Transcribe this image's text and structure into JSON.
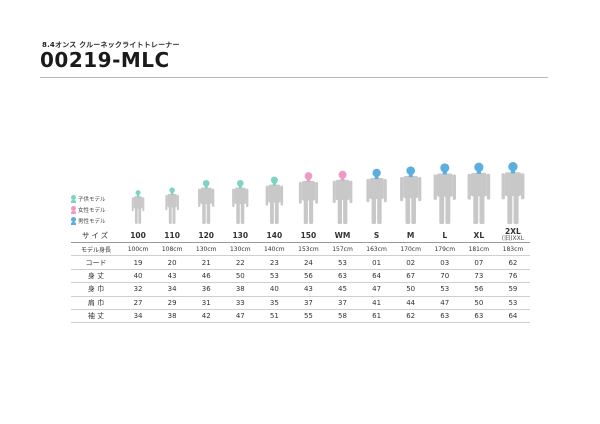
{
  "header": {
    "subtitle": "8.4オンス クルーネックライトトレーナー",
    "product_code": "00219-MLC"
  },
  "colors": {
    "kids": "#7fd3c4",
    "women": "#eb9bc4",
    "men": "#5aaee0",
    "garment": "#c8c8c8"
  },
  "legend": [
    {
      "label": "子供モデル",
      "group": "kids"
    },
    {
      "label": "女性モデル",
      "group": "women"
    },
    {
      "label": "男性モデル",
      "group": "men"
    }
  ],
  "figures": [
    {
      "group": "kids",
      "height_cm": 100
    },
    {
      "group": "kids",
      "height_cm": 108
    },
    {
      "group": "kids",
      "height_cm": 130
    },
    {
      "group": "kids",
      "height_cm": 130
    },
    {
      "group": "kids",
      "height_cm": 140
    },
    {
      "group": "women",
      "height_cm": 153
    },
    {
      "group": "women",
      "height_cm": 157
    },
    {
      "group": "men",
      "height_cm": 163
    },
    {
      "group": "men",
      "height_cm": 170
    },
    {
      "group": "men",
      "height_cm": 179
    },
    {
      "group": "men",
      "height_cm": 181
    },
    {
      "group": "men",
      "height_cm": 183
    }
  ],
  "table": {
    "size_label": "サイズ",
    "sizes": [
      {
        "label": "100",
        "group": "kids"
      },
      {
        "label": "110",
        "group": "kids"
      },
      {
        "label": "120",
        "group": "kids"
      },
      {
        "label": "130",
        "group": "kids"
      },
      {
        "label": "140",
        "group": "kids"
      },
      {
        "label": "150",
        "group": "kids"
      },
      {
        "label": "WM",
        "group": "women"
      },
      {
        "label": "S",
        "group": "kids"
      },
      {
        "label": "M",
        "group": "kids"
      },
      {
        "label": "L",
        "group": "kids"
      },
      {
        "label": "XL",
        "group": "kids"
      },
      {
        "label": "2XL",
        "sub": "(旧)XXL",
        "group": "men"
      }
    ],
    "rows": [
      {
        "label": "モデル身長",
        "kind": "height",
        "values": [
          "100cm",
          "108cm",
          "130cm",
          "130cm",
          "140cm",
          "153cm",
          "157cm",
          "163cm",
          "170cm",
          "179cm",
          "181cm",
          "183cm"
        ]
      },
      {
        "label": "コード",
        "kind": "code",
        "values": [
          "19",
          "20",
          "21",
          "22",
          "23",
          "24",
          "53",
          "01",
          "02",
          "03",
          "07",
          "62"
        ]
      },
      {
        "label": "身 丈",
        "kind": "measure",
        "values": [
          "40",
          "43",
          "46",
          "50",
          "53",
          "56",
          "63",
          "64",
          "67",
          "70",
          "73",
          "76"
        ]
      },
      {
        "label": "身 巾",
        "kind": "measure",
        "values": [
          "32",
          "34",
          "36",
          "38",
          "40",
          "43",
          "45",
          "47",
          "50",
          "53",
          "56",
          "59"
        ]
      },
      {
        "label": "肩 巾",
        "kind": "measure",
        "values": [
          "27",
          "29",
          "31",
          "33",
          "35",
          "37",
          "37",
          "41",
          "44",
          "47",
          "50",
          "53"
        ]
      },
      {
        "label": "袖 丈",
        "kind": "measure",
        "values": [
          "34",
          "38",
          "42",
          "47",
          "51",
          "55",
          "58",
          "61",
          "62",
          "63",
          "63",
          "64"
        ]
      }
    ]
  }
}
